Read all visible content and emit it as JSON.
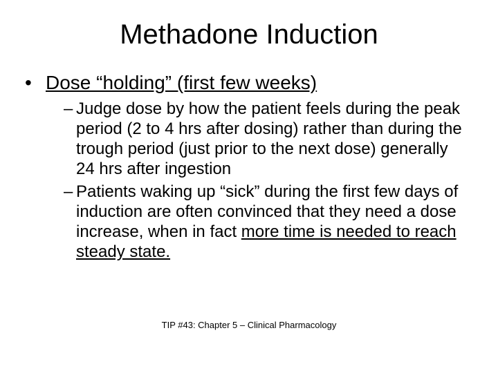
{
  "slide": {
    "title": "Methadone Induction",
    "bullet1_text": "Dose “holding” (first few weeks)",
    "sub1_text": "Judge dose by how the patient feels during the peak period (2 to 4 hrs after dosing) rather than during the trough period (just prior to the next dose) generally 24 hrs after ingestion",
    "sub2_pre": "Patients waking up “sick” during the first few days of induction are often convinced that they need a dose increase, when in fact ",
    "sub2_underlined": "more time is needed to reach steady state.",
    "footer": "TIP #43: Chapter 5 – Clinical Pharmacology"
  },
  "style": {
    "background_color": "#ffffff",
    "text_color": "#000000",
    "font_family": "Arial",
    "title_fontsize": 40,
    "level1_fontsize": 28,
    "level2_fontsize": 24,
    "footer_fontsize": 13,
    "slide_width": 720,
    "slide_height": 540
  }
}
